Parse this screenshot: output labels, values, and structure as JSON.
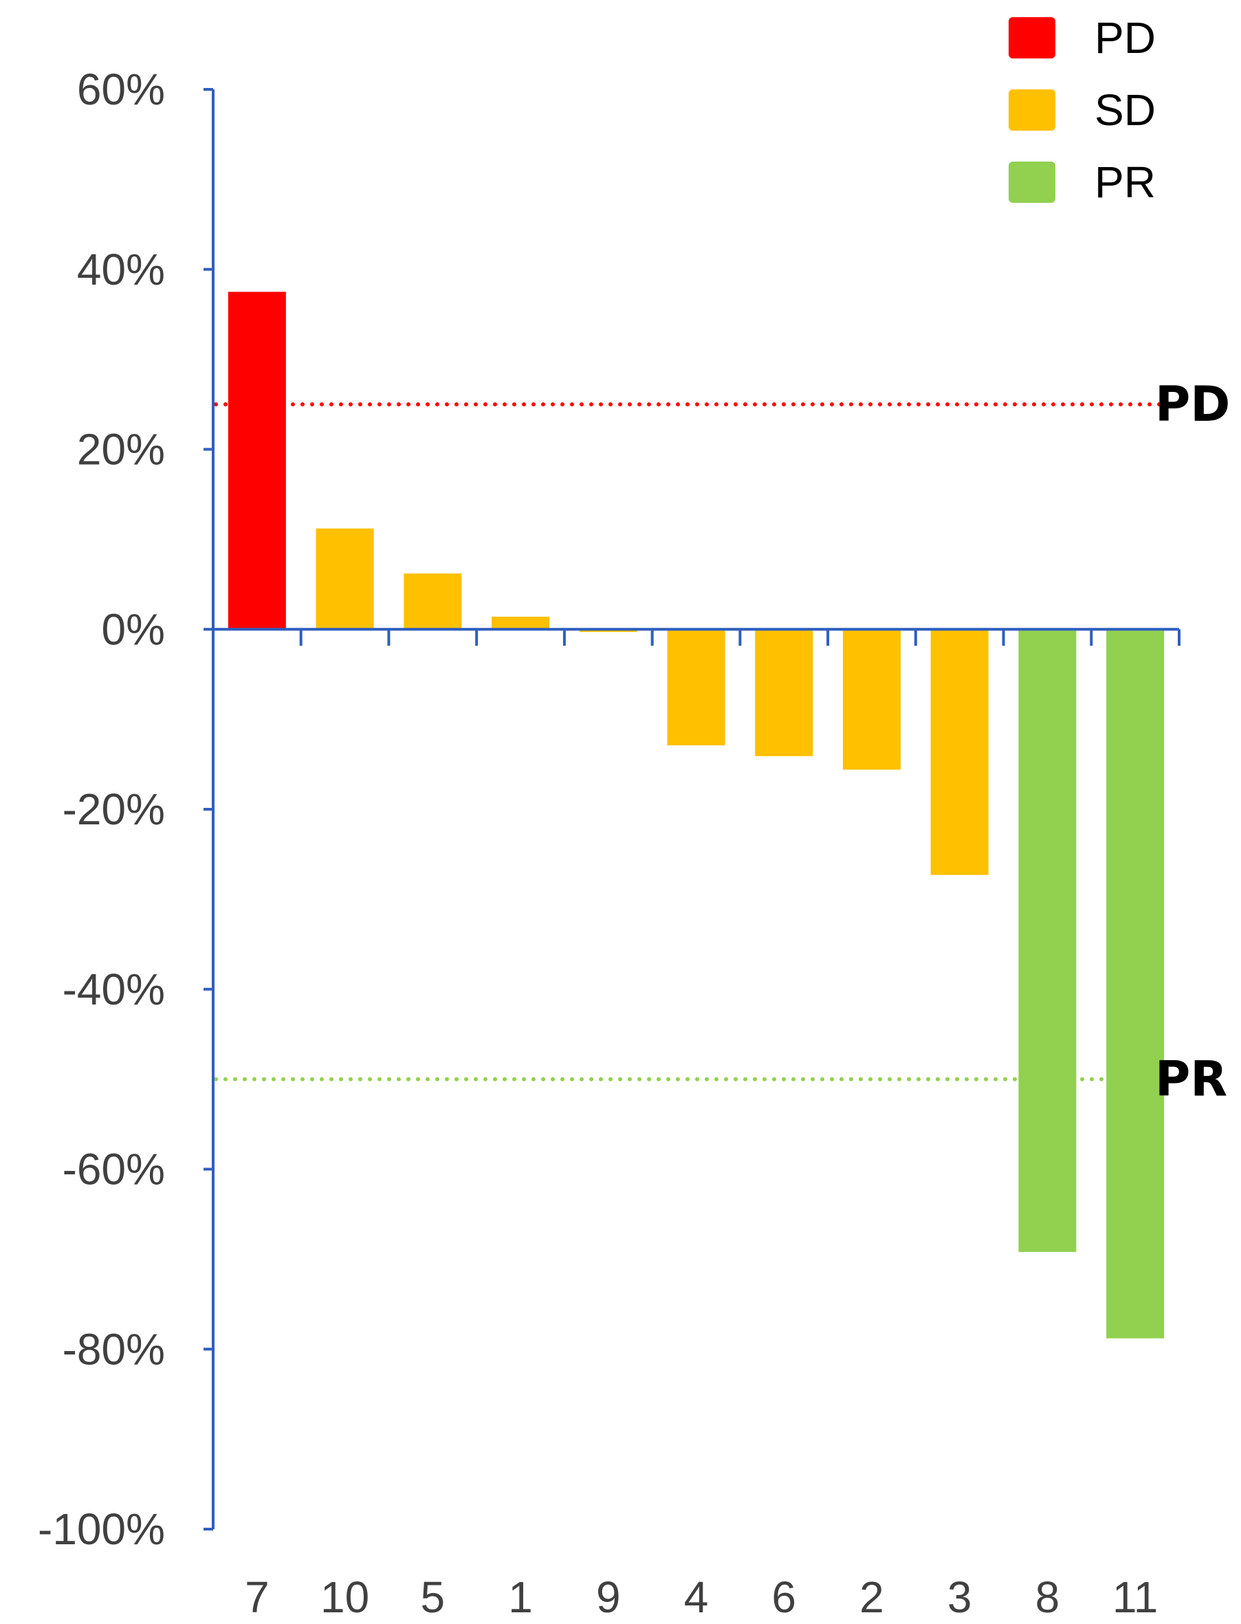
{
  "chart_data": {
    "type": "bar",
    "categories": [
      "7",
      "10",
      "5",
      "1",
      "9",
      "4",
      "6",
      "2",
      "3",
      "8",
      "11"
    ],
    "values": [
      37.5,
      11.2,
      6.2,
      1.4,
      -0.3,
      -12.9,
      -14.1,
      -15.6,
      -27.3,
      -69.2,
      -78.8
    ],
    "response": [
      "PD",
      "SD",
      "SD",
      "SD",
      "SD",
      "SD",
      "SD",
      "SD",
      "SD",
      "PR",
      "PR"
    ],
    "ylim": [
      -100,
      60
    ],
    "yticks": [
      60,
      40,
      20,
      0,
      -20,
      -40,
      -60,
      -80,
      -100
    ],
    "ytick_labels": [
      "60%",
      "40%",
      "20%",
      "0%",
      "-20%",
      "-40%",
      "-60%",
      "-80%",
      "-100%"
    ],
    "title": "",
    "xlabel": "",
    "ylabel": "",
    "grid": false,
    "legend_position": "top-right",
    "legend": [
      {
        "name": "PD",
        "color": "#ff0000"
      },
      {
        "name": "SD",
        "color": "#ffc000"
      },
      {
        "name": "PR",
        "color": "#92d050"
      }
    ],
    "reference_lines": [
      {
        "label": "PD",
        "value": 25,
        "color": "#ff0000",
        "style": "dotted"
      },
      {
        "label": "PR",
        "value": -50,
        "color": "#92d050",
        "style": "dotted"
      }
    ],
    "axis_color": "#2f5fbf"
  }
}
